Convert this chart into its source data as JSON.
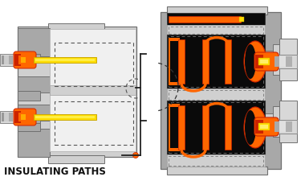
{
  "label": "INSULATING PATHS",
  "bg_color": "#ffffff",
  "gray_body": "#a8a8a8",
  "gray_light": "#d0d0d0",
  "gray_dark": "#707070",
  "gray_mid": "#b8b8b8",
  "gray_inner": "#c0c0c0",
  "orange_bright": "#ff6600",
  "orange_dark": "#cc2200",
  "orange_med": "#ee4400",
  "yellow": "#ffdd00",
  "yellow_dark": "#ccaa00",
  "black": "#0a0a0a",
  "silver_light": "#d8d8d8",
  "silver_dark": "#888888",
  "white_inner": "#f0f0f0",
  "label_fontsize": 8.5
}
